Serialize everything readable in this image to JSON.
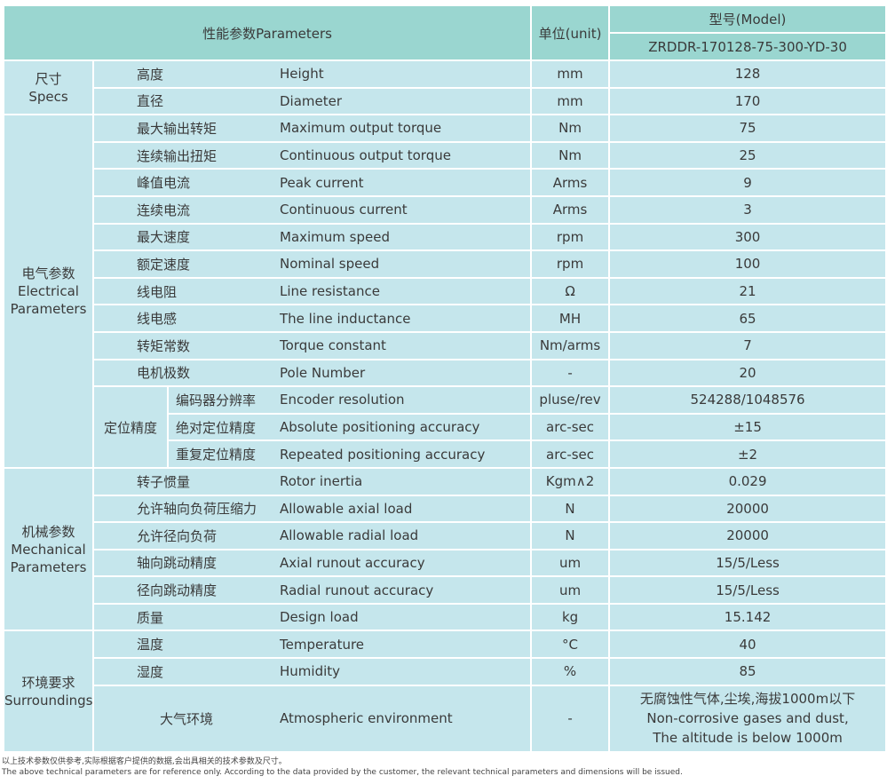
{
  "header": {
    "parameters": "性能参数Parameters",
    "unit": "单位(unit)",
    "model_label": "型号(Model)",
    "model": "ZRDDR-170128-75-300-YD-30"
  },
  "groups": {
    "specs": "尺寸\nSpecs",
    "electrical": "电气参数\nElectrical\nParameters",
    "positioning": "定位精度",
    "mechanical": "机械参数\nMechanical\nParameters",
    "surroundings": "环境要求\nSurroundings"
  },
  "rows": [
    {
      "zh": "高度",
      "en": "Height",
      "unit": "mm",
      "value": "128"
    },
    {
      "zh": "直径",
      "en": "Diameter",
      "unit": "mm",
      "value": "170"
    },
    {
      "zh": "最大输出转矩",
      "en": "Maximum output torque",
      "unit": "Nm",
      "value": "75"
    },
    {
      "zh": "连续输出扭矩",
      "en": "Continuous output torque",
      "unit": "Nm",
      "value": "25"
    },
    {
      "zh": "峰值电流",
      "en": "Peak current",
      "unit": "Arms",
      "value": "9"
    },
    {
      "zh": "连续电流",
      "en": "Continuous current",
      "unit": "Arms",
      "value": "3"
    },
    {
      "zh": "最大速度",
      "en": "Maximum speed",
      "unit": "rpm",
      "value": "300"
    },
    {
      "zh": "额定速度",
      "en": "Nominal speed",
      "unit": "rpm",
      "value": "100"
    },
    {
      "zh": "线电阻",
      "en": "Line resistance",
      "unit": "Ω",
      "value": "21"
    },
    {
      "zh": "线电感",
      "en": "The line inductance",
      "unit": "MH",
      "value": "65"
    },
    {
      "zh": "转矩常数",
      "en": "Torque constant",
      "unit": "Nm/arms",
      "value": "7"
    },
    {
      "zh": "电机极数",
      "en": "Pole Number",
      "unit": "-",
      "value": "20"
    },
    {
      "zh": "编码器分辨率",
      "en": "Encoder resolution",
      "unit": "pluse/rev",
      "value": "524288/1048576"
    },
    {
      "zh": "绝对定位精度",
      "en": "Absolute positioning accuracy",
      "unit": "arc-sec",
      "value": "±15"
    },
    {
      "zh": "重复定位精度",
      "en": "Repeated positioning accuracy",
      "unit": "arc-sec",
      "value": "±2"
    },
    {
      "zh": "转子惯量",
      "en": "Rotor inertia",
      "unit": "Kgm∧2",
      "value": "0.029"
    },
    {
      "zh": "允许轴向负荷压缩力",
      "en": "Allowable axial load",
      "unit": "N",
      "value": "20000"
    },
    {
      "zh": "允许径向负荷",
      "en": "Allowable radial load",
      "unit": "N",
      "value": "20000"
    },
    {
      "zh": "轴向跳动精度",
      "en": "Axial runout accuracy",
      "unit": "um",
      "value": "15/5/Less"
    },
    {
      "zh": "径向跳动精度",
      "en": "Radial runout accuracy",
      "unit": "um",
      "value": "15/5/Less"
    },
    {
      "zh": "质量",
      "en": "Design load",
      "unit": "kg",
      "value": "15.142"
    },
    {
      "zh": "温度",
      "en": "Temperature",
      "unit": "°C",
      "value": "40"
    },
    {
      "zh": "湿度",
      "en": "Humidity",
      "unit": "%",
      "value": "85"
    },
    {
      "zh": "大气环境",
      "en": "Atmospheric environment",
      "unit": "-",
      "value": "无腐蚀性气体,尘埃,海拔1000m以下\nNon-corrosive gases and dust,\nThe altitude is below 1000m"
    }
  ],
  "footnote": {
    "zh": "以上技术参数仅供参考,实际根据客户提供的数据,会出具相关的技术参数及尺寸。",
    "en": "The above technical parameters are for reference only. According to the data provided by the customer, the relevant technical parameters and dimensions will be issued."
  }
}
